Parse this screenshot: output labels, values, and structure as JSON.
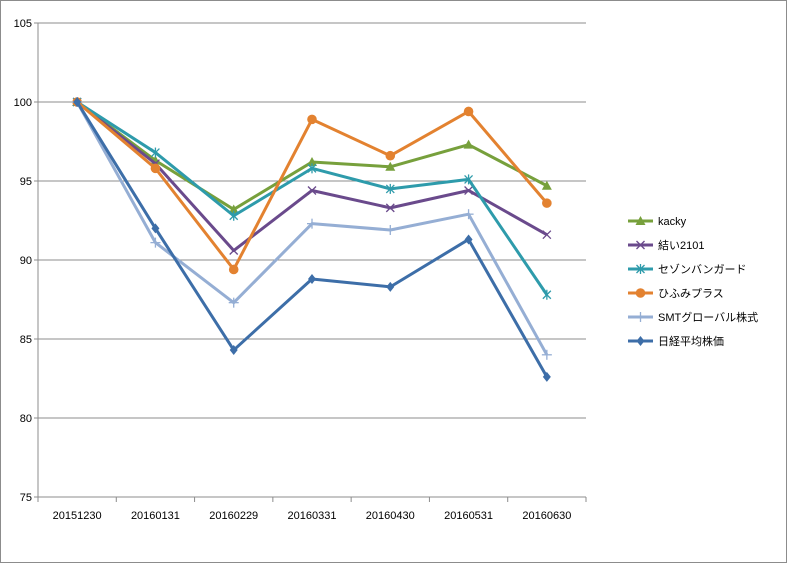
{
  "chart_data": {
    "type": "line",
    "categories": [
      "20151230",
      "20160131",
      "20160229",
      "20160331",
      "20160430",
      "20160531",
      "20160630"
    ],
    "ylim": [
      75,
      105
    ],
    "y_ticks": [
      "75",
      "80",
      "85",
      "90",
      "95",
      "100",
      "105"
    ],
    "grid": "horizontal",
    "legend_position": "right",
    "series": [
      {
        "name": "kacky",
        "color": "#77a03c",
        "marker": "triangle",
        "values": [
          100,
          96.3,
          93.2,
          96.2,
          95.9,
          97.3,
          94.7
        ]
      },
      {
        "name": "結い2101",
        "color": "#6a4a8c",
        "marker": "x",
        "values": [
          100,
          96.1,
          90.6,
          94.4,
          93.3,
          94.4,
          91.6
        ]
      },
      {
        "name": "セゾンバンガード",
        "color": "#2e9bab",
        "marker": "star",
        "values": [
          100,
          96.8,
          92.8,
          95.8,
          94.5,
          95.1,
          87.8
        ]
      },
      {
        "name": "ひふみプラス",
        "color": "#e38230",
        "marker": "circle",
        "values": [
          100,
          95.8,
          89.4,
          98.9,
          96.6,
          99.4,
          93.6
        ]
      },
      {
        "name": "SMTグローバル株式",
        "color": "#95aed4",
        "marker": "plus",
        "values": [
          100,
          91.1,
          87.3,
          92.3,
          91.9,
          92.9,
          84.0
        ]
      },
      {
        "name": "日経平均株価",
        "color": "#3d6ea8",
        "marker": "diamond",
        "values": [
          100,
          92.0,
          84.3,
          88.8,
          88.3,
          91.3,
          82.6
        ]
      }
    ]
  }
}
